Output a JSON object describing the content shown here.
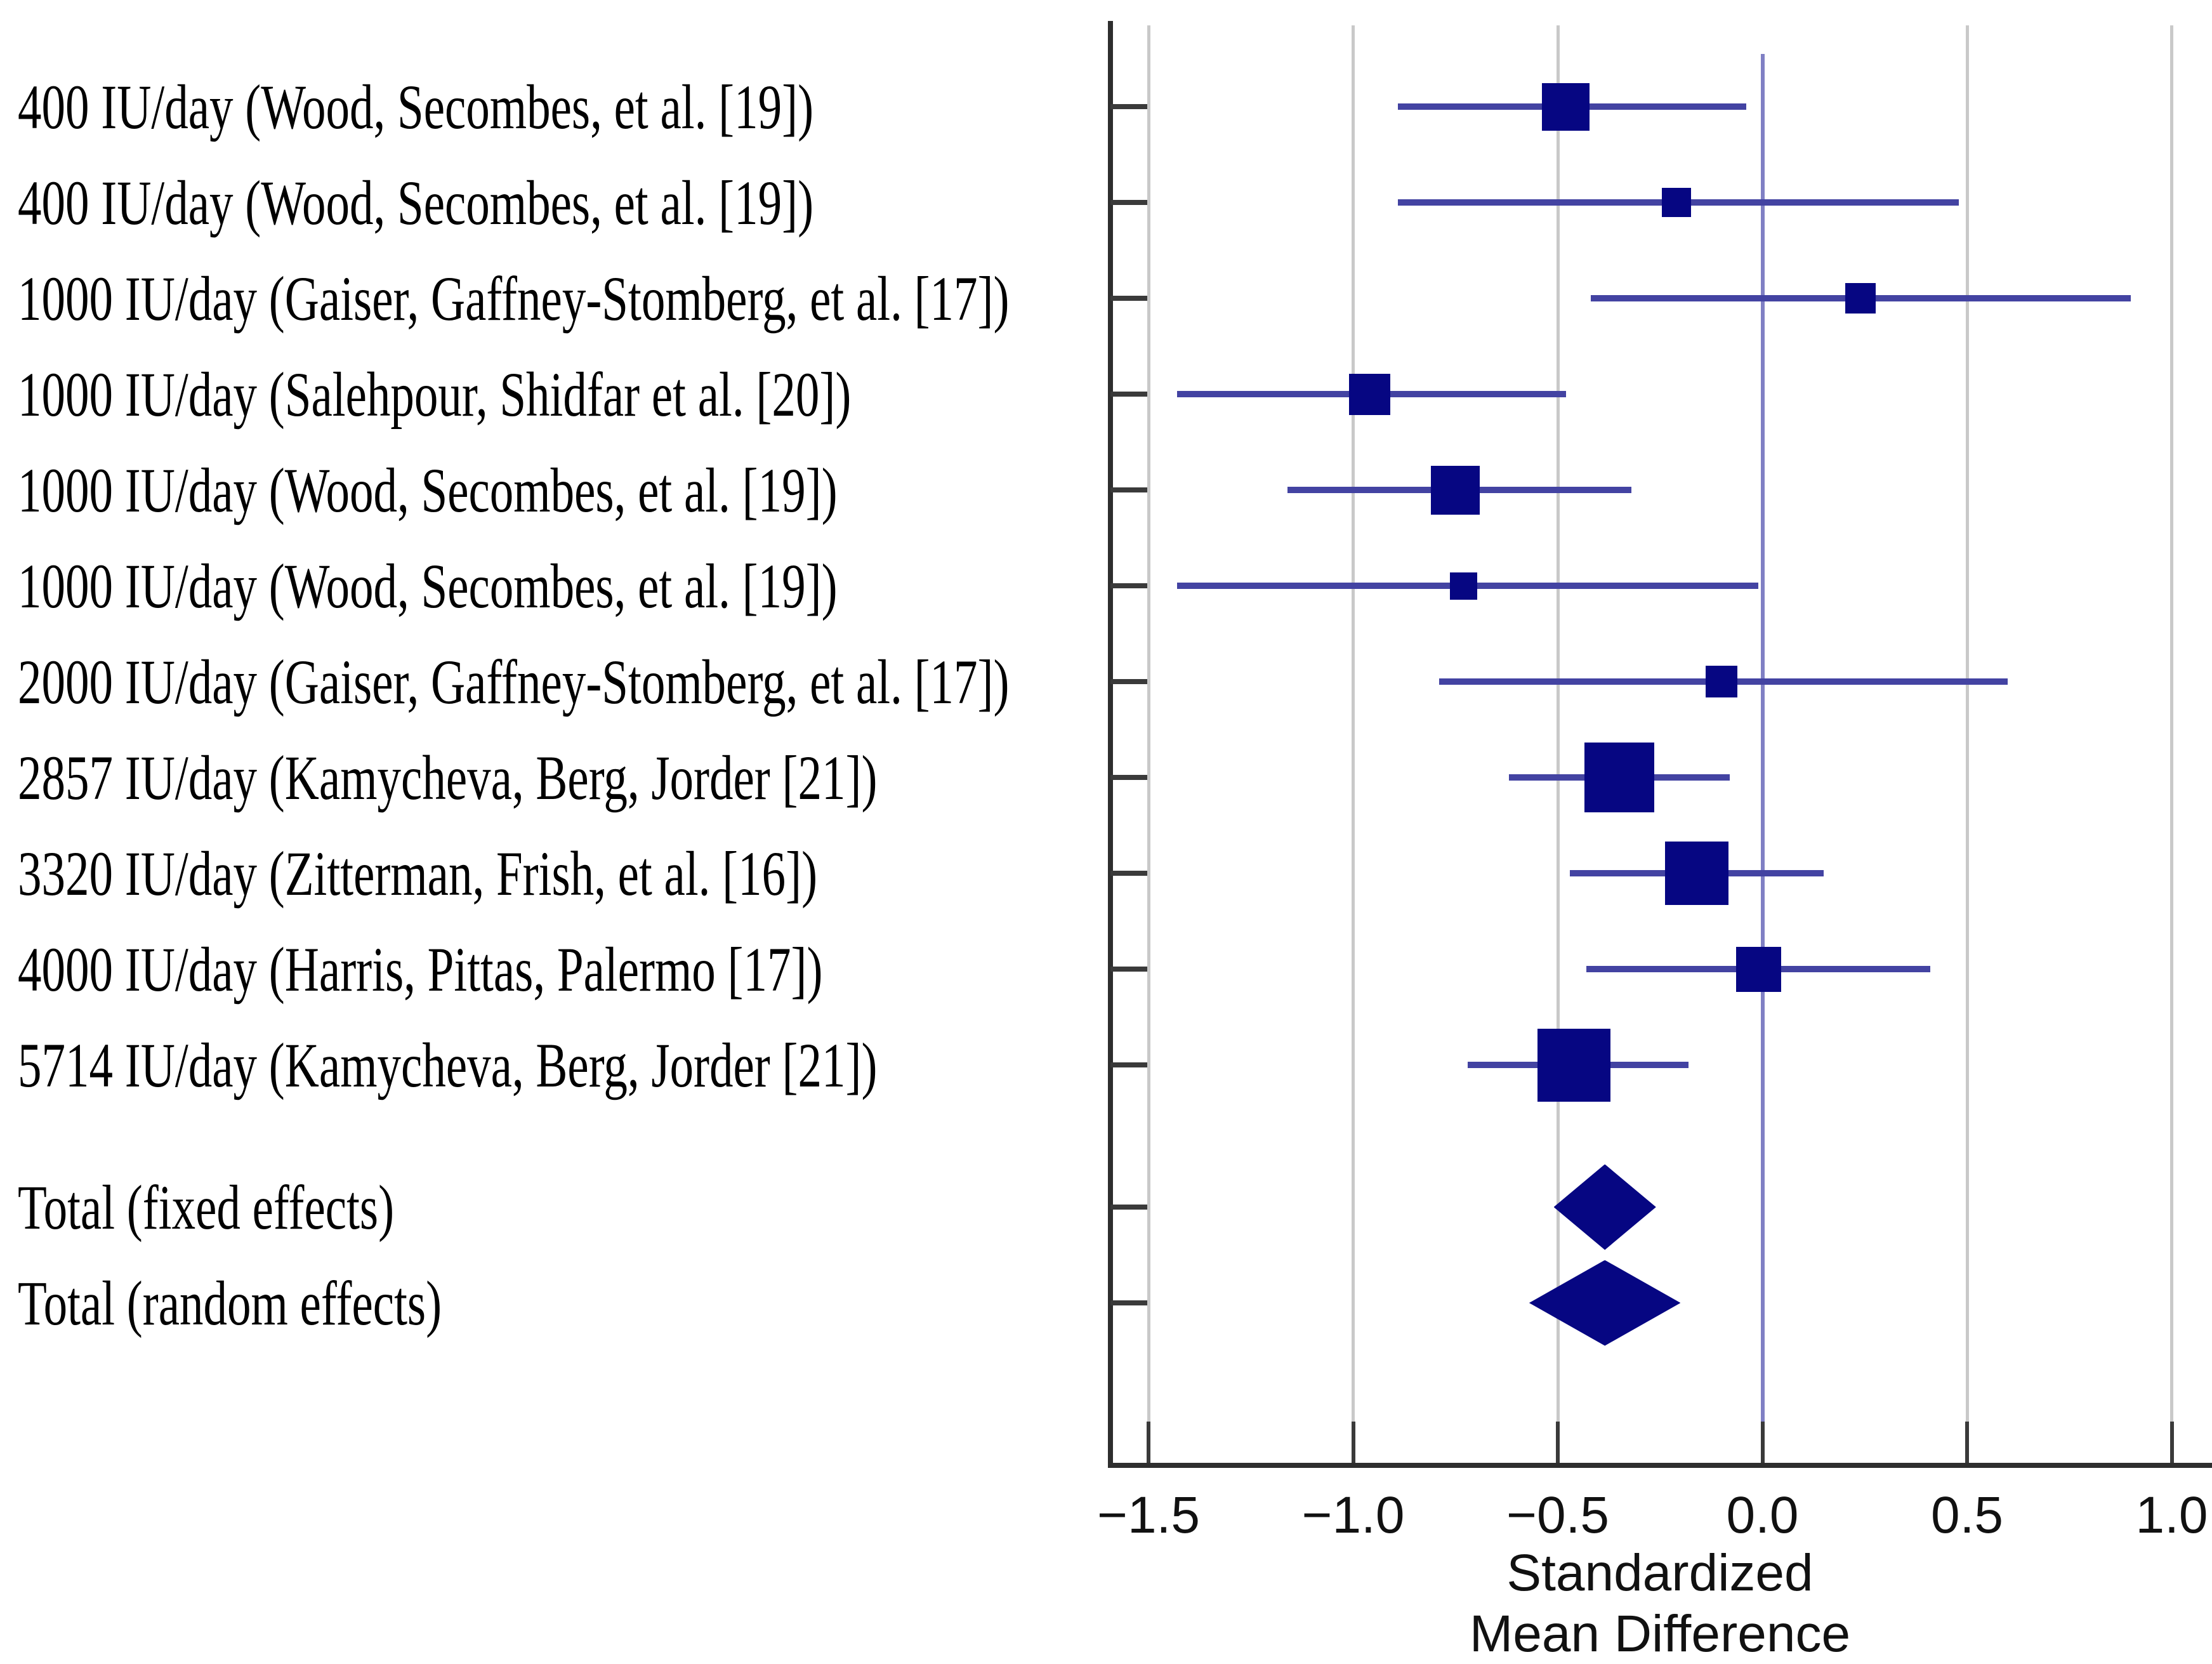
{
  "chart_data": {
    "type": "forest",
    "title": "",
    "xlabel_lines": [
      "Standardized",
      "Mean Difference"
    ],
    "xlim": [
      -1.6,
      1.1
    ],
    "x_ticks": [
      -1.5,
      -1.0,
      -0.5,
      0.0,
      0.5,
      1.0
    ],
    "x_tick_labels": [
      "−1.5",
      "−1.0",
      "−0.5",
      "0.0",
      "0.5",
      "1.0"
    ],
    "grid": true,
    "zero_reference_line": 0.0,
    "studies": [
      {
        "label": "400 IU/day (Wood, Secombes, et al. [19])",
        "smd": -0.48,
        "ci_low": -0.89,
        "ci_high": -0.04,
        "marker_size": 75
      },
      {
        "label": "400 IU/day (Wood, Secombes, et al. [19])",
        "smd": -0.21,
        "ci_low": -0.89,
        "ci_high": 0.48,
        "marker_size": 46
      },
      {
        "label": "1000 IU/day (Gaiser, Gaffney-Stomberg, et al. [17])",
        "smd": 0.24,
        "ci_low": -0.42,
        "ci_high": 0.9,
        "marker_size": 48
      },
      {
        "label": "1000 IU/day (Salehpour, Shidfar et al. [20])",
        "smd": -0.96,
        "ci_low": -1.43,
        "ci_high": -0.48,
        "marker_size": 65
      },
      {
        "label": "1000 IU/day (Wood, Secombes, et al. [19])",
        "smd": -0.75,
        "ci_low": -1.16,
        "ci_high": -0.32,
        "marker_size": 77
      },
      {
        "label": "1000 IU/day (Wood, Secombes, et al. [19])",
        "smd": -0.73,
        "ci_low": -1.43,
        "ci_high": -0.01,
        "marker_size": 43
      },
      {
        "label": "2000 IU/day (Gaiser, Gaffney-Stomberg, et al. [17])",
        "smd": -0.1,
        "ci_low": -0.79,
        "ci_high": 0.6,
        "marker_size": 50
      },
      {
        "label": "2857 IU/day (Kamycheva, Berg, Jorder [21])",
        "smd": -0.35,
        "ci_low": -0.62,
        "ci_high": -0.08,
        "marker_size": 110
      },
      {
        "label": "3320 IU/day (Zitterman, Frish, et al. [16])",
        "smd": -0.16,
        "ci_low": -0.47,
        "ci_high": 0.15,
        "marker_size": 100
      },
      {
        "label": "4000 IU/day (Harris, Pittas, Palermo [17])",
        "smd": -0.01,
        "ci_low": -0.43,
        "ci_high": 0.41,
        "marker_size": 71
      },
      {
        "label": "5714 IU/day (Kamycheva, Berg, Jorder [21])",
        "smd": -0.46,
        "ci_low": -0.72,
        "ci_high": -0.18,
        "marker_size": 115
      }
    ],
    "totals": [
      {
        "label": "Total (fixed effects)",
        "smd": -0.38,
        "ci_low": -0.51,
        "ci_high": -0.26,
        "diamond_height": 135
      },
      {
        "label": "Total (random effects)",
        "smd": -0.38,
        "ci_low": -0.57,
        "ci_high": -0.2,
        "diamond_height": 135
      }
    ]
  },
  "colors": {
    "marker": "#060682",
    "ci_line": "#4343a2",
    "zero_line": "#8080c4",
    "gridline": "#c9c9c9",
    "axis": "#2e2e2e",
    "tick": "#3a3a3a",
    "text": "#000000"
  }
}
